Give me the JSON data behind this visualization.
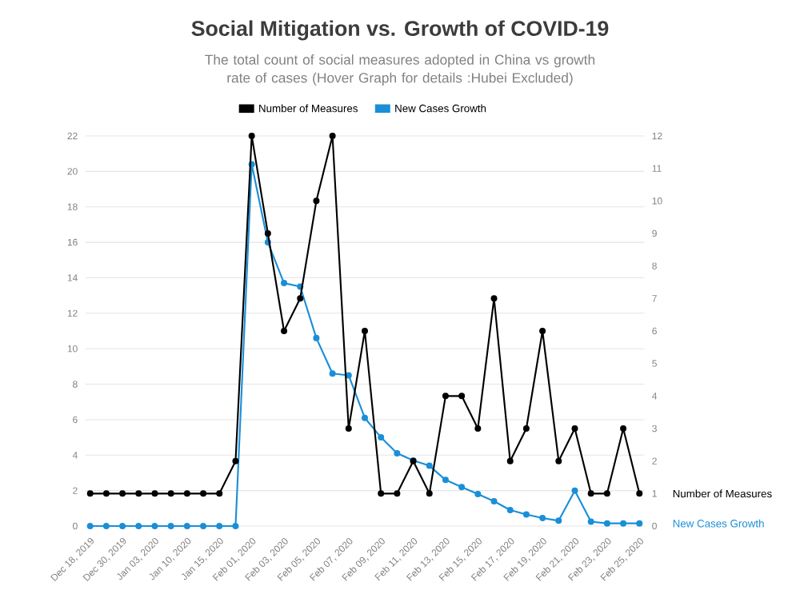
{
  "chart_data": {
    "type": "line",
    "title": "Social Mitigation vs. Growth of COVID-19",
    "subtitle": "The total count of social measures adopted in China vs growth rate of cases (Hover Graph for details :Hubei Excluded)",
    "categories": [
      "Dec 18, 2019",
      null,
      "Dec 30, 2019",
      null,
      "Jan 03, 2020",
      null,
      "Jan 10, 2020",
      null,
      "Jan 15, 2020",
      null,
      "Feb 01, 2020",
      null,
      "Feb 03, 2020",
      null,
      "Feb 05, 2020",
      null,
      "Feb 07, 2020",
      null,
      "Feb 09, 2020",
      null,
      "Feb 11, 2020",
      null,
      "Feb 13, 2020",
      null,
      "Feb 15, 2020",
      null,
      "Feb 17, 2020",
      null,
      "Feb 19, 2020",
      null,
      "Feb 21, 2020",
      null,
      "Feb 23, 2020",
      null,
      "Feb 25, 2020"
    ],
    "series": [
      {
        "name": "Number of Measures",
        "color": "#000000",
        "axis": "y2",
        "values": [
          1,
          1,
          1,
          1,
          1,
          1,
          1,
          1,
          1,
          2,
          12,
          9,
          6,
          7,
          10,
          12,
          3,
          6,
          1,
          1,
          2,
          1,
          4,
          4,
          3,
          7,
          2,
          3,
          6,
          2,
          3,
          1,
          1,
          3,
          1
        ]
      },
      {
        "name": "New Cases Growth",
        "color": "#1a8fd8",
        "values": [
          0,
          0,
          0,
          0,
          0,
          0,
          0,
          0,
          0,
          0,
          20.4,
          16,
          13.7,
          13.5,
          10.6,
          8.6,
          8.5,
          6.1,
          5.0,
          4.1,
          3.7,
          3.4,
          2.6,
          2.2,
          1.8,
          1.4,
          0.9,
          0.65,
          0.45,
          0.3,
          2.0,
          0.25,
          0.15,
          0.15,
          0.15
        ]
      }
    ],
    "ylim": [
      0,
      22
    ],
    "yticks": [
      0,
      2,
      4,
      6,
      8,
      10,
      12,
      14,
      16,
      18,
      20,
      22
    ],
    "y2lim": [
      0,
      12
    ],
    "y2ticks": [
      0,
      1,
      2,
      3,
      4,
      5,
      6,
      7,
      8,
      9,
      10,
      11,
      12
    ],
    "grid": "y",
    "legend": "top",
    "marker": "circle",
    "line_style": "solid"
  }
}
